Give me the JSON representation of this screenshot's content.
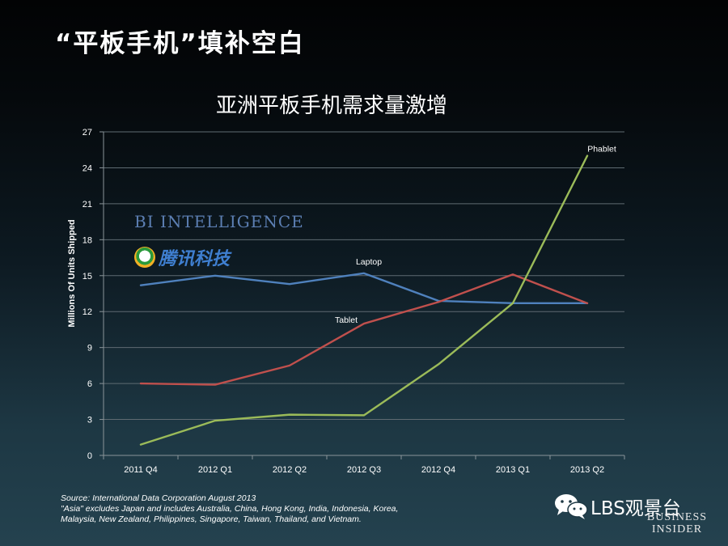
{
  "slide_title": "“平板手机”填补空白",
  "watermarks": {
    "bi_intelligence": "BI INTELLIGENCE",
    "tencent": "腾讯科技",
    "lbs": "LBS观景台",
    "business_insider_line1": "BUSINESS",
    "business_insider_line2": "INSIDER"
  },
  "source": {
    "line1": "Source: International Data Corporation August 2013",
    "line2": "\"Asia\" excludes Japan and includes Australia, China, Hong Kong, India, Indonesia, Korea,",
    "line3": "Malaysia, New Zealand, Philippines, Singapore, Taiwan, Thailand, and Vietnam."
  },
  "chart_data": {
    "type": "line",
    "title": "亚洲平板手机需求量激增",
    "xlabel": "",
    "ylabel": "Millions Of Units Shipped",
    "ylim": [
      0,
      27
    ],
    "yticks": [
      0,
      3,
      6,
      9,
      12,
      15,
      18,
      21,
      24,
      27
    ],
    "grid": true,
    "categories": [
      "2011 Q4",
      "2012 Q1",
      "2012 Q2",
      "2012 Q3",
      "2012 Q4",
      "2013 Q1",
      "2013 Q2"
    ],
    "series": [
      {
        "name": "Laptop",
        "color": "#4f81bd",
        "values": [
          14.2,
          15.0,
          14.3,
          15.2,
          12.9,
          12.7,
          12.7
        ]
      },
      {
        "name": "Tablet",
        "color": "#c0504d",
        "values": [
          6.0,
          5.9,
          7.5,
          11.0,
          12.8,
          15.1,
          12.7
        ]
      },
      {
        "name": "Phablet",
        "color": "#9bbb59",
        "values": [
          0.9,
          2.9,
          3.4,
          3.35,
          7.6,
          12.7,
          25.0
        ]
      }
    ]
  }
}
